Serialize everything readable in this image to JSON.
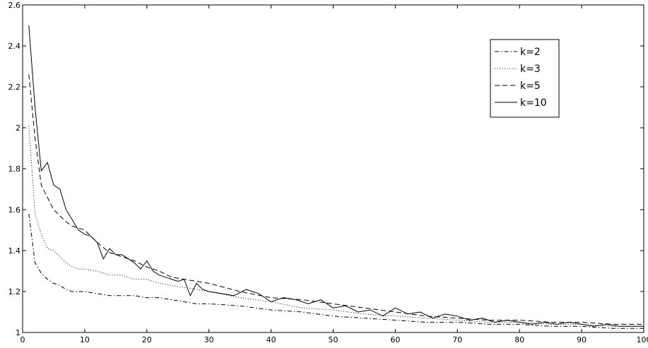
{
  "chart_data": {
    "type": "line",
    "xlim": [
      0,
      100
    ],
    "ylim": [
      1,
      2.6
    ],
    "grid": false,
    "legend_position": "top-right",
    "x_ticks": [
      0,
      10,
      20,
      30,
      40,
      50,
      60,
      70,
      80,
      90,
      100
    ],
    "y_ticks": [
      1,
      1.2,
      1.4,
      1.6,
      1.8,
      2,
      2.2,
      2.4,
      2.6
    ],
    "x_tick_labels": [
      "0",
      "10",
      "20",
      "30",
      "40",
      "50",
      "60",
      "70",
      "80",
      "90",
      "100"
    ],
    "y_tick_labels": [
      "1",
      "1.2",
      "1.4",
      "1.6",
      "1.8",
      "2",
      "2.2",
      "2.4",
      "2.6"
    ],
    "series": [
      {
        "name": "k=2",
        "style": "dashdot",
        "x": [
          1,
          2,
          3,
          4,
          5,
          6,
          7,
          8,
          9,
          10,
          12,
          14,
          16,
          18,
          20,
          22,
          24,
          26,
          28,
          30,
          35,
          40,
          45,
          50,
          55,
          60,
          65,
          70,
          75,
          80,
          85,
          90,
          95,
          100
        ],
        "y": [
          1.58,
          1.34,
          1.29,
          1.26,
          1.24,
          1.23,
          1.21,
          1.2,
          1.2,
          1.2,
          1.19,
          1.18,
          1.18,
          1.18,
          1.17,
          1.17,
          1.16,
          1.15,
          1.14,
          1.14,
          1.13,
          1.11,
          1.1,
          1.08,
          1.07,
          1.06,
          1.05,
          1.05,
          1.04,
          1.04,
          1.03,
          1.03,
          1.02,
          1.02
        ]
      },
      {
        "name": "k=3",
        "style": "dotted",
        "x": [
          1,
          2,
          3,
          4,
          5,
          6,
          7,
          8,
          9,
          10,
          12,
          14,
          16,
          18,
          20,
          22,
          24,
          26,
          28,
          30,
          35,
          40,
          45,
          50,
          55,
          60,
          65,
          70,
          75,
          80,
          85,
          90,
          95,
          100
        ],
        "y": [
          2.01,
          1.58,
          1.48,
          1.41,
          1.4,
          1.37,
          1.34,
          1.32,
          1.31,
          1.31,
          1.3,
          1.28,
          1.28,
          1.26,
          1.26,
          1.24,
          1.23,
          1.22,
          1.21,
          1.2,
          1.17,
          1.15,
          1.12,
          1.11,
          1.09,
          1.08,
          1.07,
          1.06,
          1.05,
          1.05,
          1.04,
          1.04,
          1.03,
          1.03
        ]
      },
      {
        "name": "k=5",
        "style": "dashed",
        "x": [
          1,
          2,
          3,
          4,
          5,
          6,
          7,
          8,
          9,
          10,
          12,
          14,
          16,
          18,
          20,
          22,
          24,
          26,
          28,
          30,
          35,
          40,
          45,
          50,
          55,
          60,
          65,
          70,
          75,
          80,
          85,
          90,
          95,
          100
        ],
        "y": [
          2.26,
          1.95,
          1.72,
          1.66,
          1.6,
          1.57,
          1.54,
          1.52,
          1.51,
          1.5,
          1.44,
          1.39,
          1.37,
          1.35,
          1.32,
          1.3,
          1.27,
          1.26,
          1.25,
          1.24,
          1.2,
          1.17,
          1.16,
          1.14,
          1.12,
          1.1,
          1.08,
          1.07,
          1.06,
          1.06,
          1.05,
          1.05,
          1.04,
          1.04
        ]
      },
      {
        "name": "k=10",
        "style": "solid",
        "x": [
          1,
          2,
          3,
          4,
          5,
          6,
          7,
          8,
          9,
          10,
          11,
          12,
          13,
          14,
          15,
          16,
          17,
          18,
          19,
          20,
          21,
          22,
          23,
          24,
          25,
          26,
          27,
          28,
          29,
          30,
          32,
          34,
          36,
          38,
          40,
          42,
          44,
          46,
          48,
          50,
          52,
          54,
          56,
          58,
          60,
          62,
          64,
          66,
          68,
          70,
          72,
          74,
          76,
          78,
          80,
          82,
          84,
          86,
          88,
          90,
          92,
          94,
          96,
          98,
          100
        ],
        "y": [
          2.5,
          2.1,
          1.79,
          1.83,
          1.72,
          1.7,
          1.6,
          1.55,
          1.5,
          1.48,
          1.47,
          1.44,
          1.36,
          1.41,
          1.38,
          1.38,
          1.36,
          1.34,
          1.31,
          1.35,
          1.3,
          1.28,
          1.27,
          1.26,
          1.25,
          1.26,
          1.18,
          1.24,
          1.21,
          1.2,
          1.19,
          1.18,
          1.21,
          1.19,
          1.15,
          1.17,
          1.16,
          1.14,
          1.16,
          1.12,
          1.13,
          1.1,
          1.11,
          1.08,
          1.12,
          1.09,
          1.1,
          1.07,
          1.09,
          1.08,
          1.06,
          1.07,
          1.05,
          1.06,
          1.05,
          1.04,
          1.05,
          1.04,
          1.05,
          1.04,
          1.03,
          1.04,
          1.03,
          1.03,
          1.03
        ]
      }
    ]
  }
}
